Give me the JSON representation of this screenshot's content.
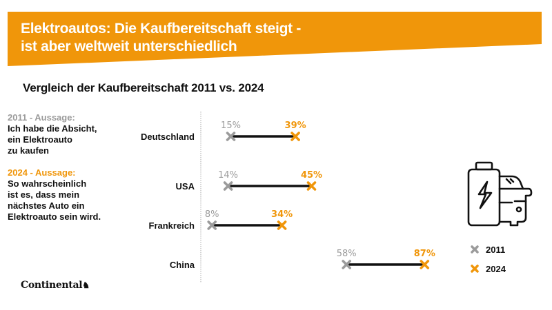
{
  "header": {
    "title_line1": "Elektroautos: Die Kaufbereitschaft steigt -",
    "title_line2": "ist aber weltweit unterschiedlich",
    "banner_color": "#F0960A"
  },
  "subtitle": "Vergleich der Kaufbereitschaft 2011 vs. 2024",
  "notes": {
    "n2011": {
      "head": "2011 - Aussage:",
      "body": [
        "Ich habe die Absicht,",
        "ein Elektroauto",
        "zu kaufen"
      ]
    },
    "n2024": {
      "head": "2024 - Aussage:",
      "body": [
        "So wahrscheinlich",
        "ist es, dass mein",
        "nächstes Auto ein",
        "Elektroauto sein wird."
      ]
    }
  },
  "legend": {
    "items": [
      {
        "label": "2011",
        "color": "#9B9B9B"
      },
      {
        "label": "2024",
        "color": "#F0960A"
      }
    ]
  },
  "icon": "battery-car-icon",
  "logo": "Continental",
  "chart_data": {
    "type": "dumbbell",
    "title": "Vergleich der Kaufbereitschaft 2011 vs. 2024",
    "categories": [
      "Deutschland",
      "USA",
      "Frankreich",
      "China"
    ],
    "series": [
      {
        "name": "2011",
        "values": [
          15,
          14,
          8,
          58
        ],
        "color": "#9B9B9B"
      },
      {
        "name": "2024",
        "values": [
          39,
          45,
          34,
          87
        ],
        "color": "#F0960A"
      }
    ],
    "labels_2011": [
      "15%",
      "14%",
      "8%",
      "58%"
    ],
    "labels_2024": [
      "39%",
      "45%",
      "34%",
      "87%"
    ],
    "unit": "%",
    "xlim": [
      0,
      100
    ],
    "legend_position": "right"
  }
}
